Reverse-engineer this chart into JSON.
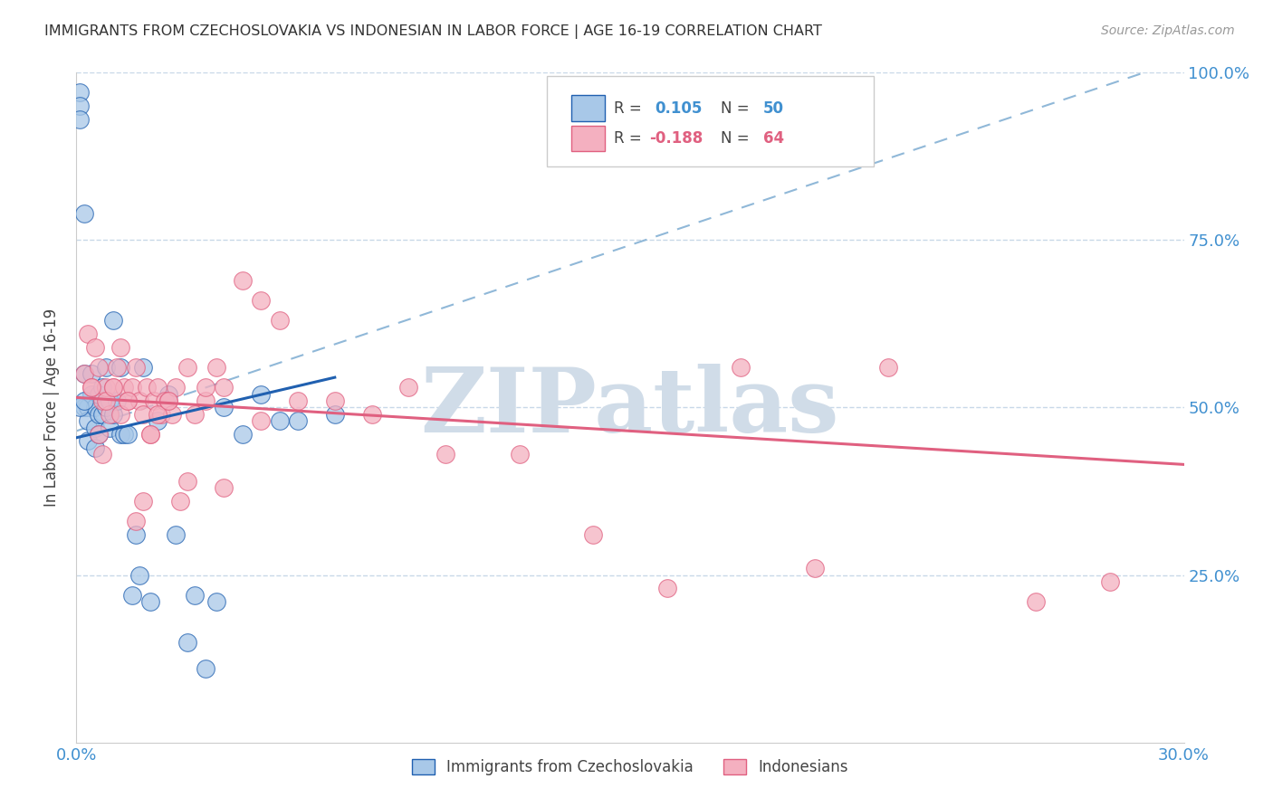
{
  "title": "IMMIGRANTS FROM CZECHOSLOVAKIA VS INDONESIAN IN LABOR FORCE | AGE 16-19 CORRELATION CHART",
  "source": "Source: ZipAtlas.com",
  "ylabel": "In Labor Force | Age 16-19",
  "legend_label1": "Immigrants from Czechoslovakia",
  "legend_label2": "Indonesians",
  "R1": 0.105,
  "N1": 50,
  "R2": -0.188,
  "N2": 64,
  "color1": "#a8c8e8",
  "color2": "#f4b0c0",
  "line1_color": "#2060b0",
  "line2_color": "#e06080",
  "dashed_line_color": "#90b8d8",
  "tick_label_color": "#4090d0",
  "grid_color": "#c8d8e8",
  "background_color": "#ffffff",
  "watermark": "ZIPatlas",
  "watermark_color": "#d0dce8",
  "xlim": [
    0.0,
    0.3
  ],
  "ylim": [
    0.0,
    1.0
  ],
  "blue_x": [
    0.001,
    0.001,
    0.001,
    0.002,
    0.002,
    0.002,
    0.003,
    0.003,
    0.003,
    0.004,
    0.004,
    0.005,
    0.005,
    0.005,
    0.006,
    0.006,
    0.006,
    0.007,
    0.007,
    0.008,
    0.008,
    0.009,
    0.009,
    0.01,
    0.01,
    0.011,
    0.012,
    0.012,
    0.013,
    0.014,
    0.015,
    0.016,
    0.017,
    0.018,
    0.02,
    0.022,
    0.025,
    0.027,
    0.03,
    0.032,
    0.035,
    0.038,
    0.04,
    0.045,
    0.05,
    0.055,
    0.06,
    0.07,
    0.001,
    0.002
  ],
  "blue_y": [
    0.97,
    0.95,
    0.93,
    0.79,
    0.55,
    0.5,
    0.5,
    0.48,
    0.45,
    0.55,
    0.52,
    0.5,
    0.47,
    0.44,
    0.52,
    0.49,
    0.46,
    0.53,
    0.49,
    0.56,
    0.5,
    0.51,
    0.47,
    0.63,
    0.49,
    0.51,
    0.56,
    0.46,
    0.46,
    0.46,
    0.22,
    0.31,
    0.25,
    0.56,
    0.21,
    0.48,
    0.52,
    0.31,
    0.15,
    0.22,
    0.11,
    0.21,
    0.5,
    0.46,
    0.52,
    0.48,
    0.48,
    0.49,
    0.5,
    0.51
  ],
  "pink_x": [
    0.002,
    0.003,
    0.004,
    0.005,
    0.006,
    0.007,
    0.008,
    0.009,
    0.01,
    0.011,
    0.012,
    0.013,
    0.014,
    0.015,
    0.016,
    0.017,
    0.018,
    0.019,
    0.02,
    0.021,
    0.022,
    0.023,
    0.024,
    0.025,
    0.026,
    0.027,
    0.028,
    0.03,
    0.032,
    0.035,
    0.038,
    0.04,
    0.045,
    0.05,
    0.055,
    0.06,
    0.07,
    0.08,
    0.09,
    0.1,
    0.12,
    0.14,
    0.16,
    0.18,
    0.2,
    0.22,
    0.26,
    0.28,
    0.004,
    0.006,
    0.007,
    0.008,
    0.01,
    0.012,
    0.014,
    0.016,
    0.018,
    0.02,
    0.022,
    0.025,
    0.03,
    0.035,
    0.04,
    0.05
  ],
  "pink_y": [
    0.55,
    0.61,
    0.53,
    0.59,
    0.56,
    0.51,
    0.53,
    0.49,
    0.53,
    0.56,
    0.59,
    0.53,
    0.51,
    0.53,
    0.56,
    0.51,
    0.49,
    0.53,
    0.46,
    0.51,
    0.53,
    0.49,
    0.51,
    0.51,
    0.49,
    0.53,
    0.36,
    0.56,
    0.49,
    0.51,
    0.56,
    0.53,
    0.69,
    0.66,
    0.63,
    0.51,
    0.51,
    0.49,
    0.53,
    0.43,
    0.43,
    0.31,
    0.23,
    0.56,
    0.26,
    0.56,
    0.21,
    0.24,
    0.53,
    0.46,
    0.43,
    0.51,
    0.53,
    0.49,
    0.51,
    0.33,
    0.36,
    0.46,
    0.49,
    0.51,
    0.39,
    0.53,
    0.38,
    0.48
  ]
}
